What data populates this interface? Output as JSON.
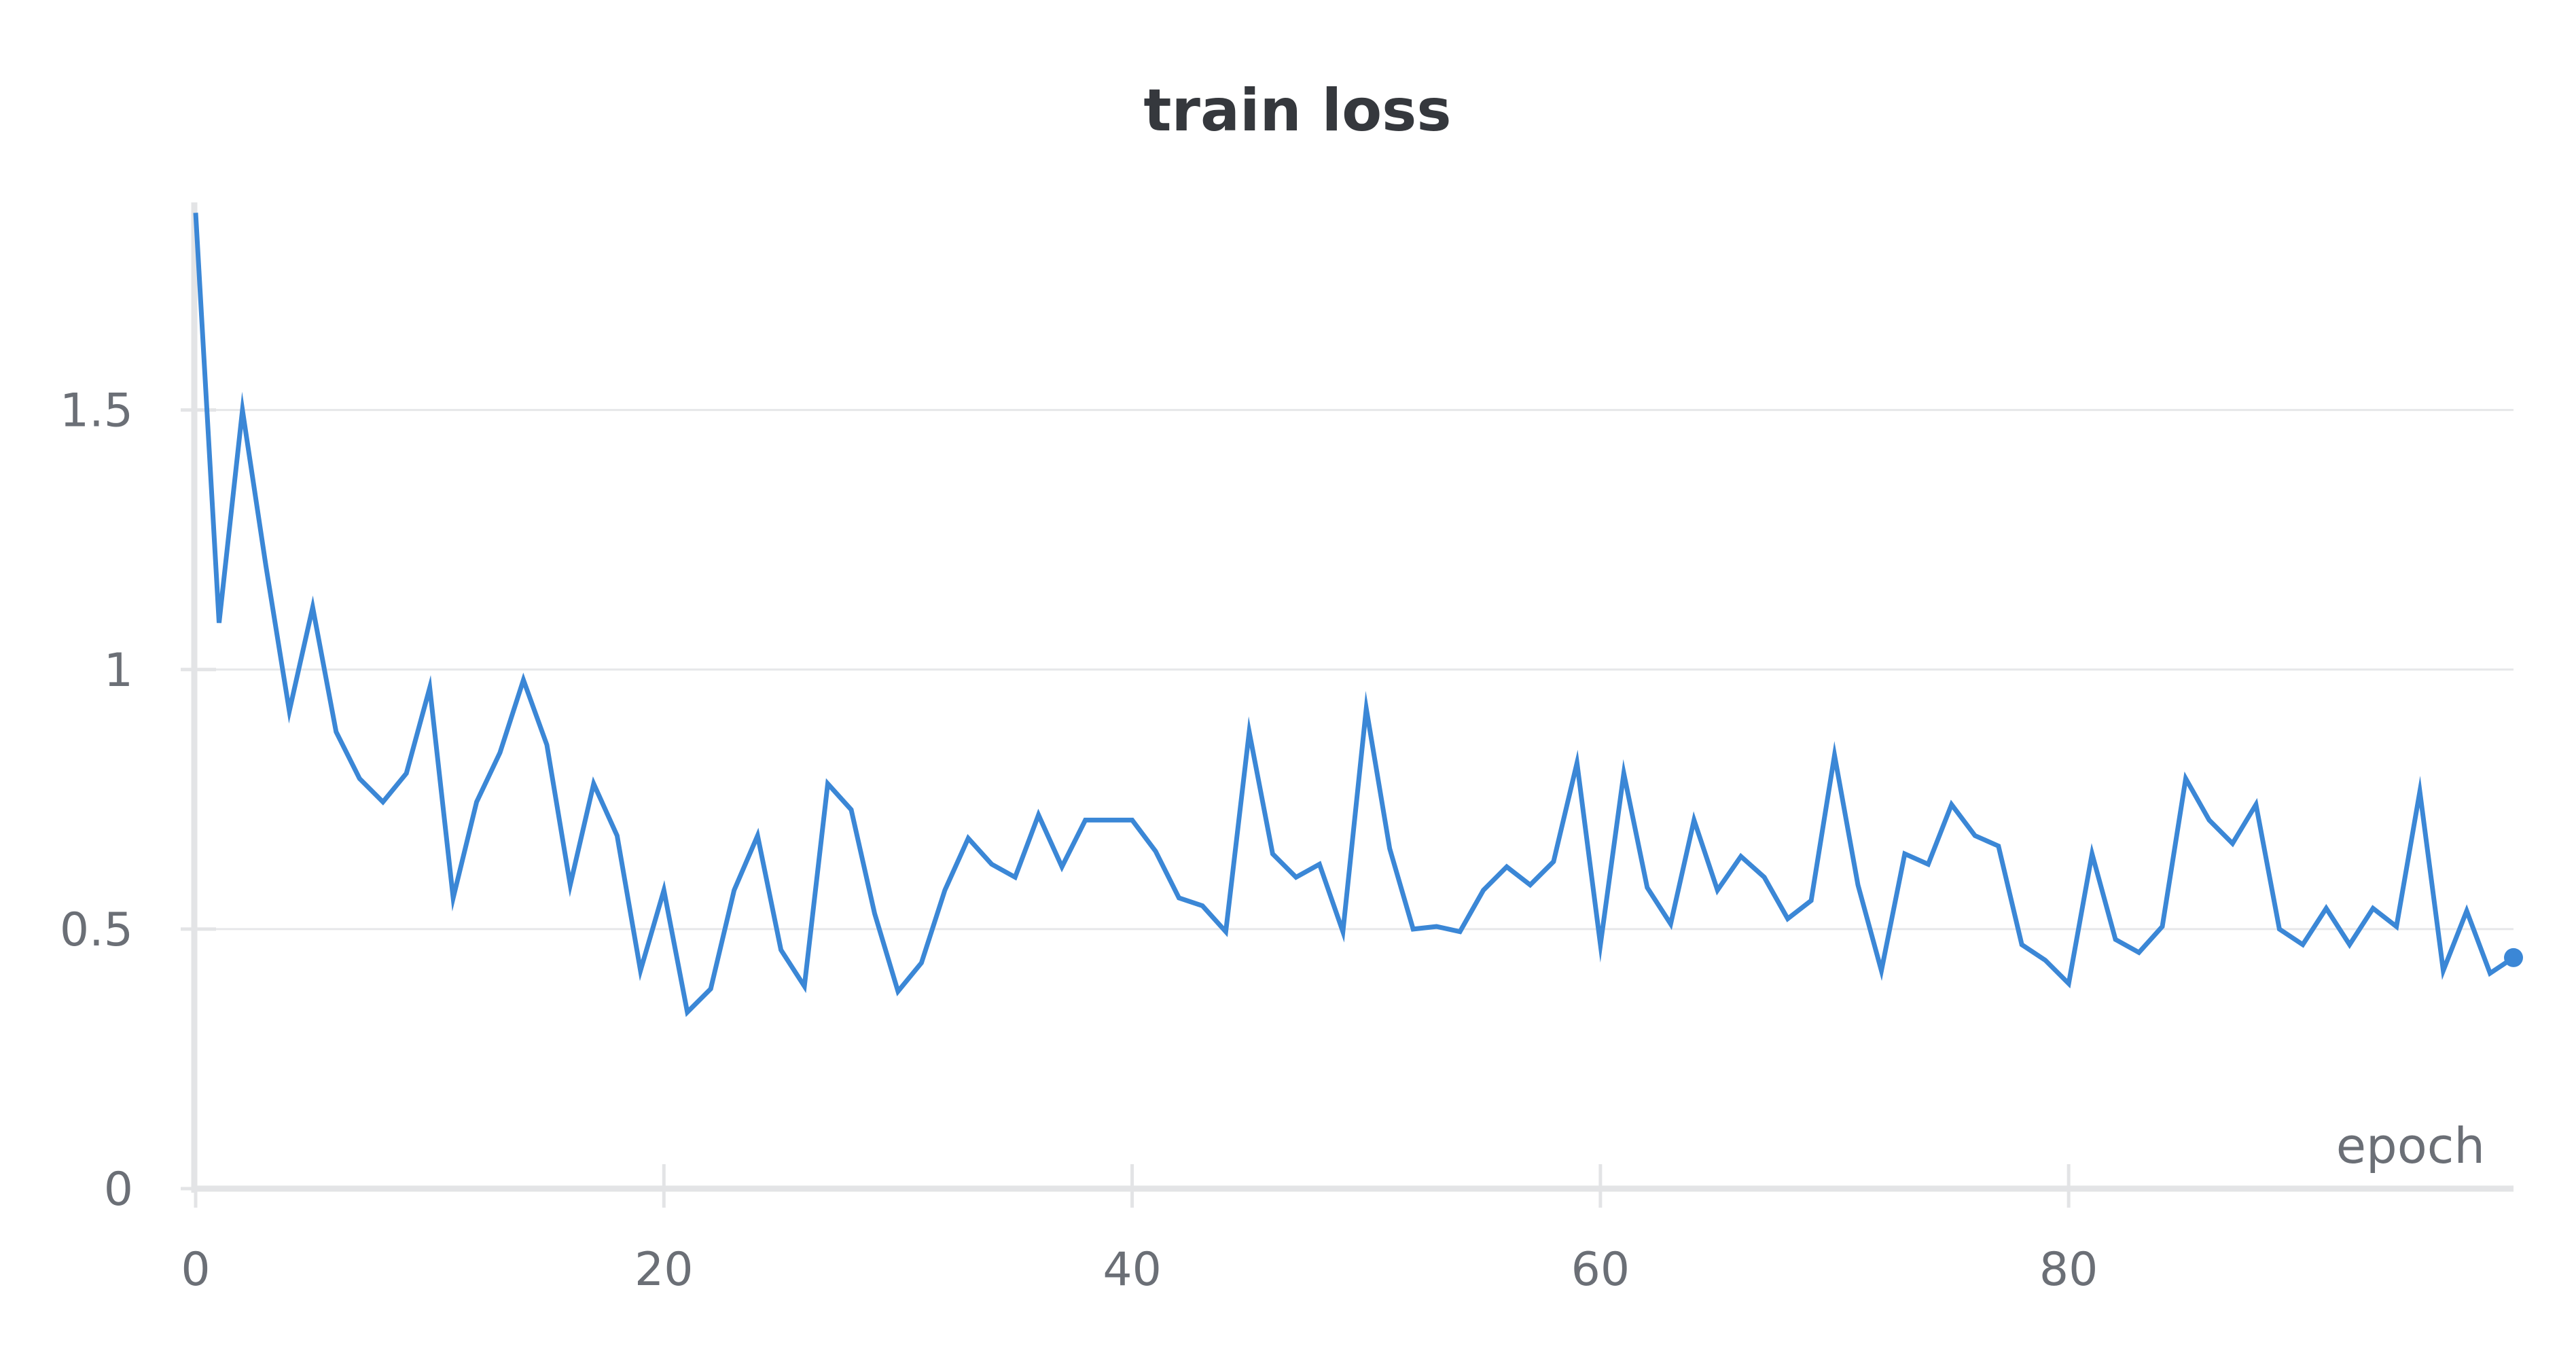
{
  "chart_data": {
    "type": "line",
    "title": "train loss",
    "xlabel": "epoch",
    "ylabel": "",
    "xlim": [
      0,
      99
    ],
    "ylim": [
      0,
      1.9
    ],
    "x_ticks": [
      0,
      20,
      40,
      60,
      80
    ],
    "y_ticks": [
      0,
      0.5,
      1,
      1.5
    ],
    "x_tick_labels": [
      "0",
      "20",
      "40",
      "60",
      "80"
    ],
    "y_tick_labels": [
      "0",
      "0.5",
      "1",
      "1.5"
    ],
    "grid": "horizontal",
    "legend": "none",
    "series": [
      {
        "color": "#3b87d6",
        "x": [
          0,
          1,
          2,
          3,
          4,
          5,
          6,
          7,
          8,
          9,
          10,
          11,
          12,
          13,
          14,
          15,
          16,
          17,
          18,
          19,
          20,
          21,
          22,
          23,
          24,
          25,
          26,
          27,
          28,
          29,
          30,
          31,
          32,
          33,
          34,
          35,
          36,
          37,
          38,
          39,
          40,
          41,
          42,
          43,
          44,
          45,
          46,
          47,
          48,
          49,
          50,
          51,
          52,
          53,
          54,
          55,
          56,
          57,
          58,
          59,
          60,
          61,
          62,
          63,
          64,
          65,
          66,
          67,
          68,
          69,
          70,
          71,
          72,
          73,
          74,
          75,
          76,
          77,
          78,
          79,
          80,
          81,
          82,
          83,
          84,
          85,
          86,
          87,
          88,
          89,
          90,
          91,
          92,
          93,
          94,
          95,
          96,
          97,
          98,
          99
        ],
        "values": [
          1.88,
          1.09,
          1.5,
          1.2,
          0.92,
          1.12,
          0.88,
          0.79,
          0.745,
          0.8,
          0.965,
          0.56,
          0.745,
          0.84,
          0.98,
          0.855,
          0.585,
          0.78,
          0.68,
          0.42,
          0.575,
          0.34,
          0.385,
          0.575,
          0.68,
          0.46,
          0.39,
          0.78,
          0.73,
          0.53,
          0.38,
          0.435,
          0.575,
          0.675,
          0.625,
          0.6,
          0.72,
          0.62,
          0.71,
          0.71,
          0.71,
          0.65,
          0.56,
          0.545,
          0.495,
          0.88,
          0.645,
          0.6,
          0.625,
          0.495,
          0.925,
          0.655,
          0.5,
          0.505,
          0.495,
          0.575,
          0.62,
          0.585,
          0.63,
          0.82,
          0.47,
          0.8,
          0.58,
          0.51,
          0.71,
          0.575,
          0.64,
          0.6,
          0.52,
          0.555,
          0.835,
          0.585,
          0.42,
          0.645,
          0.625,
          0.74,
          0.68,
          0.66,
          0.47,
          0.44,
          0.395,
          0.645,
          0.48,
          0.455,
          0.505,
          0.79,
          0.71,
          0.665,
          0.74,
          0.5,
          0.47,
          0.54,
          0.47,
          0.54,
          0.505,
          0.765,
          0.42,
          0.535,
          0.415,
          0.445
        ]
      }
    ]
  }
}
